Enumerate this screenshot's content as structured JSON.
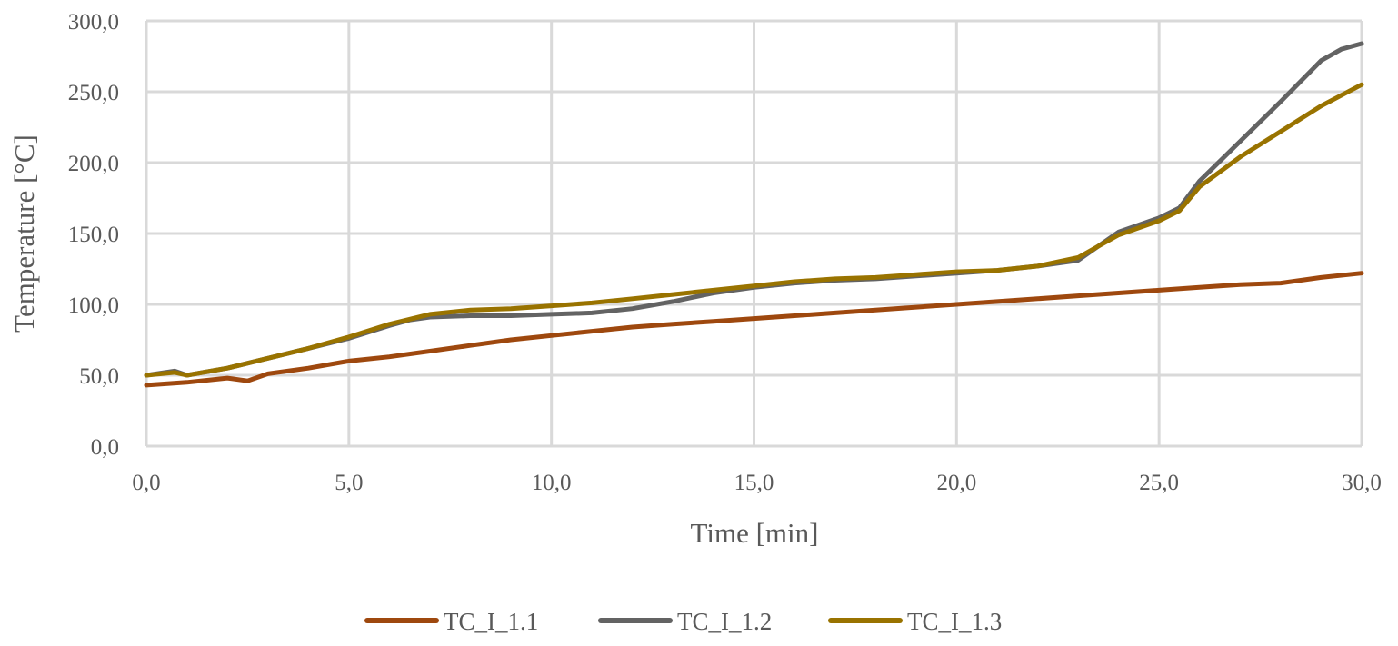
{
  "chart_data": {
    "type": "line",
    "title": "",
    "xlabel": "Time [min]",
    "ylabel": "Temperature [°C]",
    "xlim": [
      0,
      30
    ],
    "ylim": [
      0,
      300
    ],
    "x_ticks": [
      "0,0",
      "5,0",
      "10,0",
      "15,0",
      "20,0",
      "25,0",
      "30,0"
    ],
    "y_ticks": [
      "0,0",
      "50,0",
      "100,0",
      "150,0",
      "200,0",
      "250,0",
      "300,0"
    ],
    "grid": true,
    "legend_position": "bottom",
    "series": [
      {
        "name": "TC_I_1.1",
        "color": "#9E480E",
        "x": [
          0,
          1,
          2,
          2.5,
          3,
          4,
          5,
          6,
          7,
          8,
          9,
          10,
          11,
          12,
          13,
          14,
          15,
          16,
          17,
          18,
          19,
          20,
          21,
          22,
          23,
          24,
          25,
          26,
          27,
          28,
          29,
          30
        ],
        "y": [
          43,
          45,
          48,
          46,
          51,
          55,
          60,
          63,
          67,
          71,
          75,
          78,
          81,
          84,
          86,
          88,
          90,
          92,
          94,
          96,
          98,
          100,
          102,
          104,
          106,
          108,
          110,
          112,
          114,
          115,
          119,
          122
        ]
      },
      {
        "name": "TC_I_1.2",
        "color": "#636363",
        "x": [
          0,
          0.7,
          1,
          2,
          3,
          4,
          5,
          6,
          6.5,
          7,
          8,
          9,
          10,
          11,
          12,
          13,
          14,
          15,
          16,
          17,
          18,
          19,
          20,
          21,
          22,
          23,
          24,
          25,
          25.5,
          26,
          27,
          28,
          29,
          29.5,
          30
        ],
        "y": [
          50,
          53,
          50,
          55,
          62,
          69,
          76,
          85,
          89,
          91,
          92,
          92,
          93,
          94,
          97,
          102,
          108,
          112,
          115,
          117,
          118,
          120,
          122,
          124,
          127,
          131,
          151,
          161,
          168,
          187,
          215,
          243,
          272,
          280,
          284
        ]
      },
      {
        "name": "TC_I_1.3",
        "color": "#997300",
        "x": [
          0,
          0.7,
          1,
          2,
          3,
          4,
          5,
          6,
          7,
          8,
          9,
          10,
          11,
          12,
          13,
          14,
          15,
          16,
          17,
          18,
          19,
          20,
          21,
          22,
          23,
          24,
          25,
          25.5,
          26,
          27,
          28,
          29,
          30
        ],
        "y": [
          50,
          52,
          50,
          55,
          62,
          69,
          77,
          86,
          93,
          96,
          97,
          99,
          101,
          104,
          107,
          110,
          113,
          116,
          118,
          119,
          121,
          123,
          124,
          127,
          133,
          149,
          159,
          166,
          183,
          204,
          222,
          240,
          255
        ]
      }
    ]
  }
}
